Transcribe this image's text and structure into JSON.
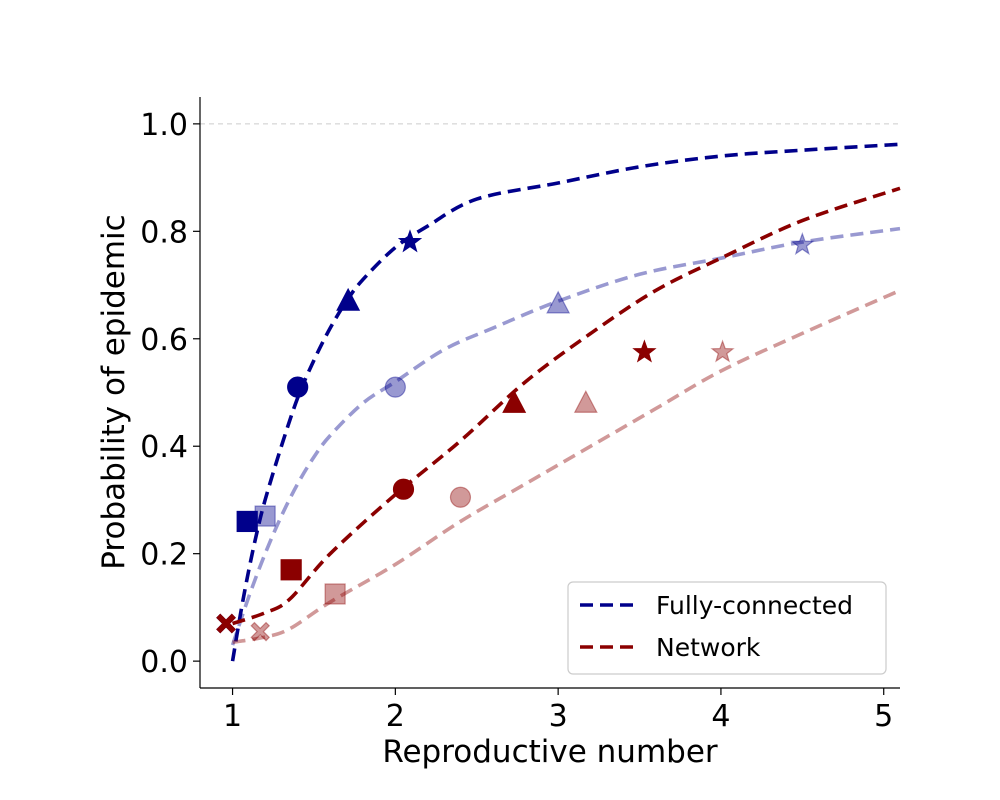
{
  "chart_data": {
    "type": "line",
    "title": "",
    "xlabel": "Reproductive number",
    "ylabel": "Probability of epidemic",
    "xlim": [
      0.8,
      5.1
    ],
    "ylim": [
      -0.05,
      1.05
    ],
    "x_ticks": [
      1,
      2,
      3,
      4,
      5
    ],
    "x_tick_labels": [
      "1",
      "2",
      "3",
      "4",
      "5"
    ],
    "y_ticks": [
      0.0,
      0.2,
      0.4,
      0.6,
      0.8,
      1.0
    ],
    "y_tick_labels": [
      "0.0",
      "0.2",
      "0.4",
      "0.6",
      "0.8",
      "1.0"
    ],
    "reference_line": {
      "y": 1.0,
      "style": "dashed",
      "color": "#cccccc"
    },
    "legend": {
      "position": "lower-right",
      "entries": [
        {
          "label": "Fully-connected",
          "color": "#00008b"
        },
        {
          "label": "Network",
          "color": "#8b0000"
        }
      ]
    },
    "curves": [
      {
        "group": "fully-connected",
        "color": "#00008b",
        "opacity": 1.0,
        "x": [
          1.0,
          1.05,
          1.1,
          1.15,
          1.2,
          1.3,
          1.4,
          1.5,
          1.6,
          1.7,
          1.8,
          2.0,
          2.2,
          2.5,
          3.0,
          3.5,
          4.0,
          4.5,
          5.1
        ],
        "y": [
          0.0,
          0.09,
          0.17,
          0.24,
          0.3,
          0.4,
          0.49,
          0.56,
          0.62,
          0.67,
          0.71,
          0.77,
          0.81,
          0.86,
          0.89,
          0.92,
          0.94,
          0.951,
          0.962
        ]
      },
      {
        "group": "fully-connected",
        "color": "#00008b",
        "opacity": 0.4,
        "x": [
          1.0,
          1.1,
          1.2,
          1.3,
          1.4,
          1.5,
          1.6,
          1.8,
          2.0,
          2.3,
          2.6,
          3.0,
          3.5,
          4.0,
          4.5,
          5.1
        ],
        "y": [
          0.03,
          0.12,
          0.2,
          0.27,
          0.33,
          0.38,
          0.42,
          0.48,
          0.52,
          0.58,
          0.62,
          0.67,
          0.72,
          0.75,
          0.78,
          0.805
        ]
      },
      {
        "group": "network",
        "color": "#8b0000",
        "opacity": 1.0,
        "x": [
          1.0,
          1.2,
          1.35,
          1.6,
          2.0,
          2.4,
          2.8,
          3.2,
          3.6,
          4.0,
          4.5,
          5.1
        ],
        "y": [
          0.07,
          0.09,
          0.115,
          0.2,
          0.31,
          0.41,
          0.52,
          0.61,
          0.69,
          0.75,
          0.82,
          0.88
        ]
      },
      {
        "group": "network",
        "color": "#8b0000",
        "opacity": 0.4,
        "x": [
          1.0,
          1.2,
          1.35,
          1.6,
          2.0,
          2.4,
          2.8,
          3.2,
          3.6,
          4.0,
          4.5,
          5.1
        ],
        "y": [
          0.035,
          0.045,
          0.06,
          0.11,
          0.18,
          0.26,
          0.33,
          0.4,
          0.47,
          0.54,
          0.61,
          0.69
        ]
      }
    ],
    "points": [
      {
        "marker": "cross",
        "color": "#00008b",
        "opacity": 1.0,
        "x": 0.96,
        "y": 0.07
      },
      {
        "marker": "square",
        "color": "#00008b",
        "opacity": 1.0,
        "x": 1.09,
        "y": 0.26
      },
      {
        "marker": "circle",
        "color": "#00008b",
        "opacity": 1.0,
        "x": 1.4,
        "y": 0.51
      },
      {
        "marker": "triangle",
        "color": "#00008b",
        "opacity": 1.0,
        "x": 1.71,
        "y": 0.67
      },
      {
        "marker": "star",
        "color": "#00008b",
        "opacity": 1.0,
        "x": 2.09,
        "y": 0.78
      },
      {
        "marker": "square",
        "color": "#00008b",
        "opacity": 0.4,
        "x": 1.2,
        "y": 0.27
      },
      {
        "marker": "circle",
        "color": "#00008b",
        "opacity": 0.4,
        "x": 2.0,
        "y": 0.51
      },
      {
        "marker": "triangle",
        "color": "#00008b",
        "opacity": 0.4,
        "x": 3.0,
        "y": 0.665
      },
      {
        "marker": "star",
        "color": "#00008b",
        "opacity": 0.4,
        "x": 4.5,
        "y": 0.775
      },
      {
        "marker": "cross",
        "color": "#8b0000",
        "opacity": 1.0,
        "x": 0.96,
        "y": 0.07
      },
      {
        "marker": "square",
        "color": "#8b0000",
        "opacity": 1.0,
        "x": 1.36,
        "y": 0.17
      },
      {
        "marker": "circle",
        "color": "#8b0000",
        "opacity": 1.0,
        "x": 2.05,
        "y": 0.32
      },
      {
        "marker": "triangle",
        "color": "#8b0000",
        "opacity": 1.0,
        "x": 2.73,
        "y": 0.48
      },
      {
        "marker": "star",
        "color": "#8b0000",
        "opacity": 1.0,
        "x": 3.53,
        "y": 0.575
      },
      {
        "marker": "cross",
        "color": "#8b0000",
        "opacity": 0.4,
        "x": 1.17,
        "y": 0.055
      },
      {
        "marker": "square",
        "color": "#8b0000",
        "opacity": 0.4,
        "x": 1.63,
        "y": 0.125
      },
      {
        "marker": "circle",
        "color": "#8b0000",
        "opacity": 0.4,
        "x": 2.4,
        "y": 0.305
      },
      {
        "marker": "triangle",
        "color": "#8b0000",
        "opacity": 0.4,
        "x": 3.17,
        "y": 0.48
      },
      {
        "marker": "star",
        "color": "#8b0000",
        "opacity": 0.4,
        "x": 4.01,
        "y": 0.575
      }
    ]
  }
}
